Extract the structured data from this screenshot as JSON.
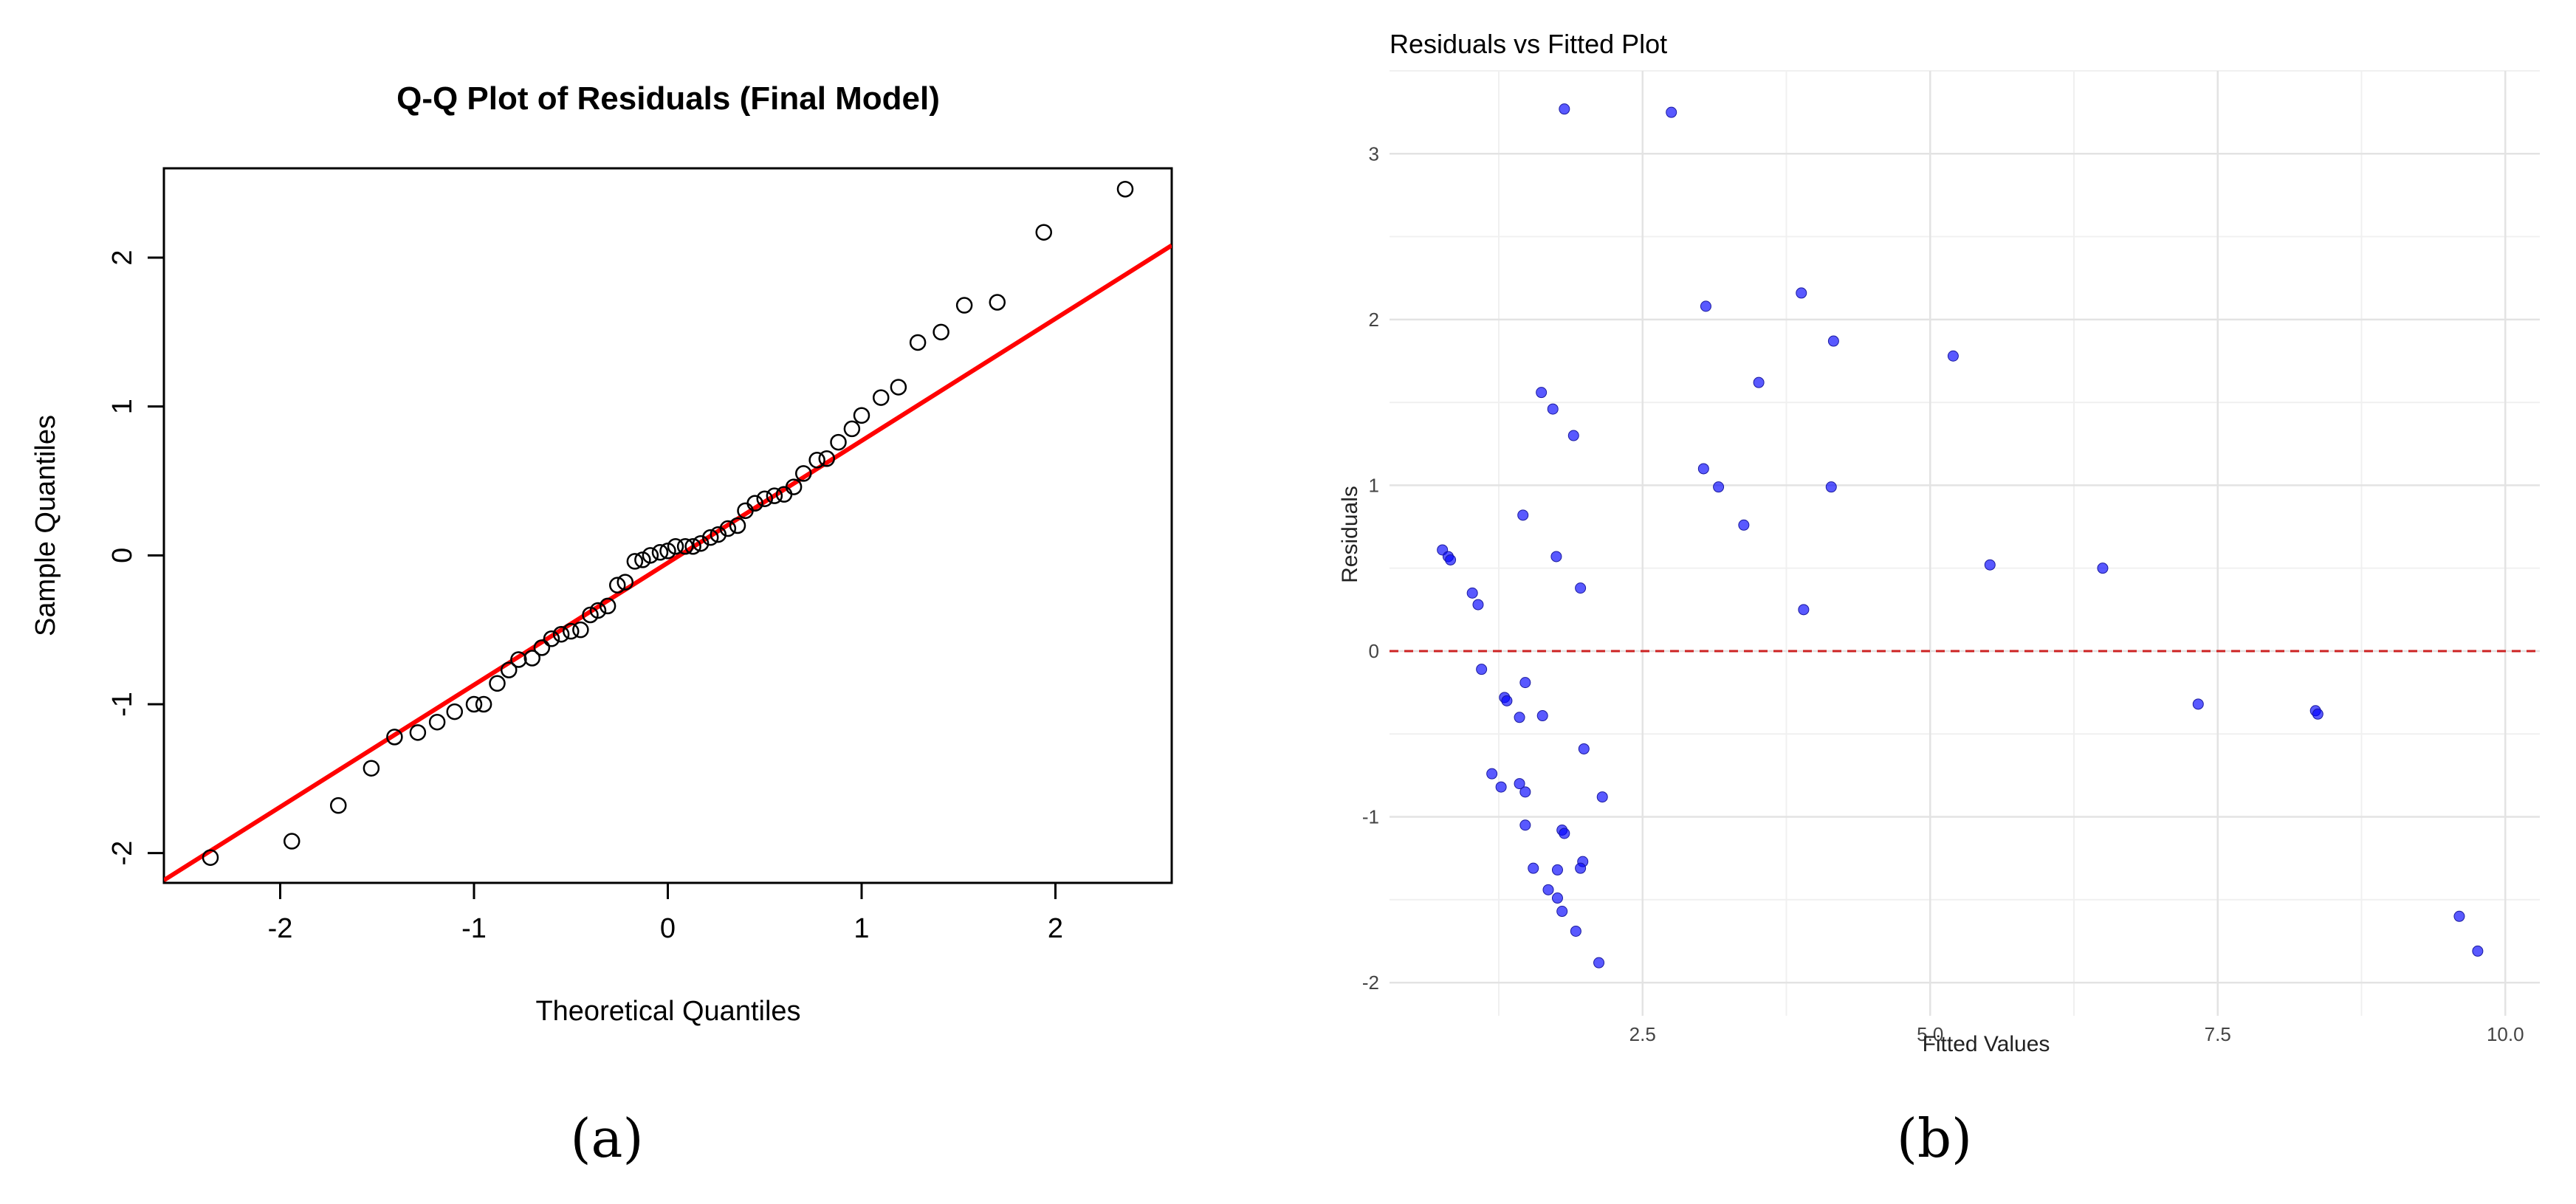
{
  "panels": {
    "a_label": "(a)",
    "b_label": "(b)"
  },
  "chart_data": [
    {
      "type": "scatter",
      "title": "Q-Q Plot of Residuals (Final Model)",
      "xlabel": "Theoretical Quantiles",
      "ylabel": "Sample Quantiles",
      "xlim": [
        -2.6,
        2.6
      ],
      "ylim": [
        -2.2,
        2.6
      ],
      "xticks": [
        -2,
        -1,
        0,
        1,
        2
      ],
      "yticks": [
        -2,
        -1,
        0,
        1,
        2
      ],
      "grid": false,
      "point_style": "open-circle",
      "point_color": "#000000",
      "line_color": "#ff0000",
      "reference_line": {
        "intercept": -0.05,
        "slope": 0.82
      },
      "points": [
        [
          -2.36,
          -2.03
        ],
        [
          -1.94,
          -1.92
        ],
        [
          -1.7,
          -1.68
        ],
        [
          -1.53,
          -1.43
        ],
        [
          -1.41,
          -1.22
        ],
        [
          -1.29,
          -1.19
        ],
        [
          -1.19,
          -1.12
        ],
        [
          -1.1,
          -1.05
        ],
        [
          -1.0,
          -1.0
        ],
        [
          -0.95,
          -1.0
        ],
        [
          -0.88,
          -0.86
        ],
        [
          -0.82,
          -0.77
        ],
        [
          -0.77,
          -0.7
        ],
        [
          -0.7,
          -0.69
        ],
        [
          -0.65,
          -0.62
        ],
        [
          -0.6,
          -0.56
        ],
        [
          -0.55,
          -0.53
        ],
        [
          -0.5,
          -0.51
        ],
        [
          -0.45,
          -0.5
        ],
        [
          -0.4,
          -0.4
        ],
        [
          -0.36,
          -0.37
        ],
        [
          -0.31,
          -0.34
        ],
        [
          -0.26,
          -0.2
        ],
        [
          -0.22,
          -0.18
        ],
        [
          -0.17,
          -0.04
        ],
        [
          -0.13,
          -0.03
        ],
        [
          -0.09,
          0.0
        ],
        [
          -0.04,
          0.02
        ],
        [
          0.0,
          0.03
        ],
        [
          0.04,
          0.06
        ],
        [
          0.09,
          0.06
        ],
        [
          0.13,
          0.06
        ],
        [
          0.17,
          0.08
        ],
        [
          0.22,
          0.12
        ],
        [
          0.26,
          0.14
        ],
        [
          0.31,
          0.18
        ],
        [
          0.36,
          0.2
        ],
        [
          0.4,
          0.3
        ],
        [
          0.45,
          0.35
        ],
        [
          0.5,
          0.38
        ],
        [
          0.55,
          0.4
        ],
        [
          0.6,
          0.41
        ],
        [
          0.65,
          0.46
        ],
        [
          0.7,
          0.55
        ],
        [
          0.77,
          0.64
        ],
        [
          0.82,
          0.65
        ],
        [
          0.88,
          0.76
        ],
        [
          0.95,
          0.85
        ],
        [
          1.0,
          0.94
        ],
        [
          1.1,
          1.06
        ],
        [
          1.19,
          1.13
        ],
        [
          1.29,
          1.43
        ],
        [
          1.41,
          1.5
        ],
        [
          1.53,
          1.68
        ],
        [
          1.7,
          1.7
        ],
        [
          1.94,
          2.17
        ],
        [
          2.36,
          2.46
        ]
      ]
    },
    {
      "type": "scatter",
      "title": "Residuals vs Fitted Plot",
      "xlabel": "Fitted Values",
      "ylabel": "Residuals",
      "xlim": [
        0.3,
        10.3
      ],
      "ylim": [
        -2.2,
        3.5
      ],
      "xticks": [
        "2.5",
        "5.0",
        "7.5",
        "10.0"
      ],
      "yticks": [
        -2,
        -1,
        0,
        1,
        2,
        3
      ],
      "grid": true,
      "point_color": "#0000ff",
      "hline": {
        "y": 0,
        "color": "#cc2222",
        "style": "dashed"
      },
      "points": [
        [
          1.82,
          3.27
        ],
        [
          2.75,
          3.25
        ],
        [
          3.88,
          2.16
        ],
        [
          3.05,
          2.08
        ],
        [
          4.16,
          1.87
        ],
        [
          5.2,
          1.78
        ],
        [
          3.51,
          1.62
        ],
        [
          1.62,
          1.56
        ],
        [
          1.72,
          1.46
        ],
        [
          1.9,
          1.3
        ],
        [
          3.03,
          1.1
        ],
        [
          3.16,
          0.99
        ],
        [
          4.14,
          0.99
        ],
        [
          1.46,
          0.82
        ],
        [
          3.38,
          0.76
        ],
        [
          1.75,
          0.57
        ],
        [
          0.76,
          0.61
        ],
        [
          0.81,
          0.57
        ],
        [
          0.83,
          0.55
        ],
        [
          5.52,
          0.52
        ],
        [
          6.5,
          0.5
        ],
        [
          1.96,
          0.38
        ],
        [
          1.02,
          0.35
        ],
        [
          1.07,
          0.28
        ],
        [
          3.9,
          0.25
        ],
        [
          1.1,
          -0.11
        ],
        [
          1.48,
          -0.19
        ],
        [
          1.3,
          -0.28
        ],
        [
          1.32,
          -0.3
        ],
        [
          1.43,
          -0.4
        ],
        [
          1.63,
          -0.39
        ],
        [
          7.33,
          -0.32
        ],
        [
          8.35,
          -0.36
        ],
        [
          8.37,
          -0.38
        ],
        [
          1.99,
          -0.59
        ],
        [
          1.19,
          -0.74
        ],
        [
          1.27,
          -0.82
        ],
        [
          1.43,
          -0.8
        ],
        [
          1.48,
          -0.85
        ],
        [
          2.15,
          -0.88
        ],
        [
          1.8,
          -1.08
        ],
        [
          1.82,
          -1.1
        ],
        [
          1.48,
          -1.05
        ],
        [
          1.55,
          -1.31
        ],
        [
          1.98,
          -1.27
        ],
        [
          1.96,
          -1.31
        ],
        [
          1.76,
          -1.32
        ],
        [
          1.68,
          -1.44
        ],
        [
          1.76,
          -1.49
        ],
        [
          1.8,
          -1.57
        ],
        [
          1.92,
          -1.69
        ],
        [
          2.12,
          -1.88
        ],
        [
          9.6,
          -1.6
        ],
        [
          9.76,
          -1.81
        ]
      ]
    }
  ]
}
